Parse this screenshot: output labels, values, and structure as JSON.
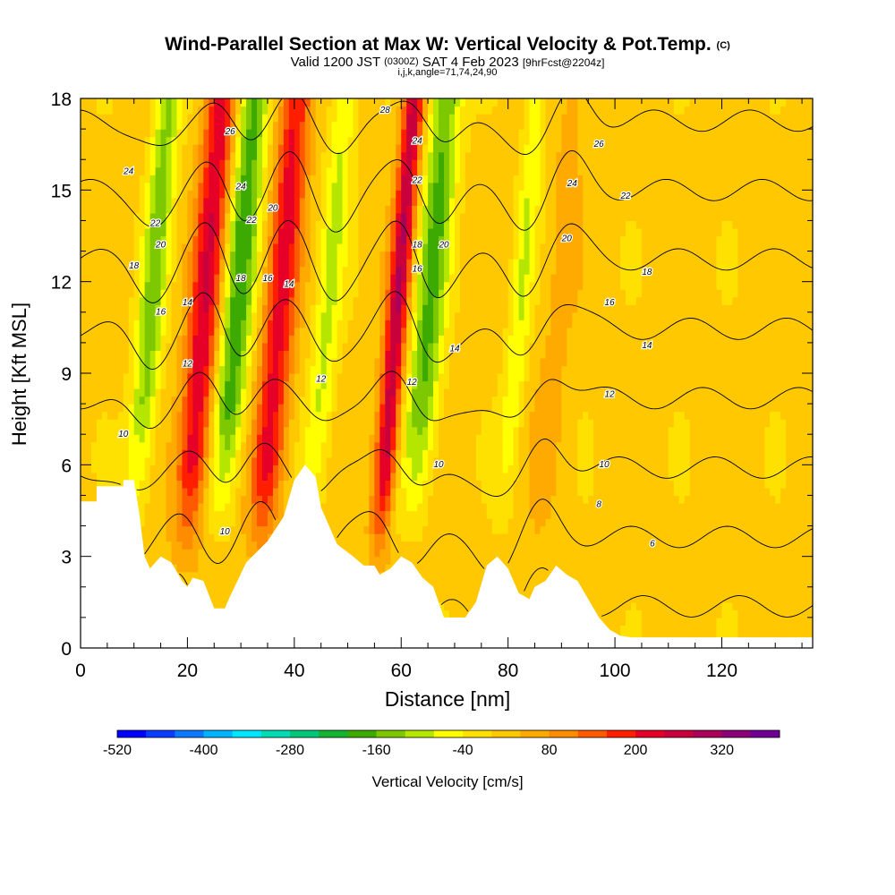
{
  "header": {
    "title": "Wind-Parallel Section at Max W: Vertical Velocity & Pot.Temp.",
    "title_mark": "(C)",
    "valid_prefix": "Valid 1200 JST",
    "valid_utc": "(0300Z)",
    "valid_date": "SAT 4 Feb 2023",
    "forecast": "[9hrFcst@2204z]",
    "indices": "i,j,k,angle=71,74,24,90"
  },
  "chart_data": {
    "type": "heatmap",
    "xlabel": "Distance [nm]",
    "ylabel": "Height [Kft MSL]",
    "xlim": [
      0,
      137
    ],
    "ylim": [
      0,
      18
    ],
    "x_ticks": [
      0,
      20,
      40,
      60,
      80,
      100,
      120
    ],
    "y_ticks": [
      0,
      3,
      6,
      9,
      12,
      15,
      18
    ],
    "colorbar": {
      "label": "Vertical Velocity [cm/s]",
      "tick_labels": [
        "-520",
        "-400",
        "-280",
        "-160",
        "-40",
        "80",
        "200",
        "320"
      ],
      "tick_values": [
        -520,
        -400,
        -280,
        -160,
        -40,
        80,
        200,
        320
      ],
      "range": [
        -520,
        400
      ],
      "colors": [
        "#0000ff",
        "#0a3cff",
        "#0a78ff",
        "#00b4ff",
        "#00e6ff",
        "#00dcb4",
        "#00c878",
        "#14b432",
        "#3caa00",
        "#7dc800",
        "#b4e600",
        "#ffff00",
        "#ffe100",
        "#ffc800",
        "#ffaa00",
        "#ff8c00",
        "#ff5a00",
        "#ff1e00",
        "#e60028",
        "#c8003c",
        "#aa005a",
        "#8c0078",
        "#6e0096"
      ]
    },
    "updrafts": [
      {
        "x": 21,
        "width": 3,
        "peak": 220
      },
      {
        "x": 35,
        "width": 3,
        "peak": 200
      },
      {
        "x": 57,
        "width": 2,
        "peak": 260
      },
      {
        "x": 87,
        "width": 3,
        "peak": 40
      }
    ],
    "downdrafts": [
      {
        "x": 11,
        "width": 2.5,
        "peak": -150
      },
      {
        "x": 27,
        "width": 3,
        "peak": -200
      },
      {
        "x": 44,
        "width": 2.5,
        "peak": -100
      },
      {
        "x": 63,
        "width": 3,
        "peak": -180
      },
      {
        "x": 80,
        "width": 2,
        "peak": -90
      }
    ],
    "terrain": [
      [
        0,
        4.8
      ],
      [
        3,
        4.8
      ],
      [
        3,
        5.3
      ],
      [
        8,
        5.3
      ],
      [
        8,
        5.5
      ],
      [
        10,
        5.5
      ],
      [
        11,
        4.4
      ],
      [
        12,
        3.0
      ],
      [
        13,
        2.6
      ],
      [
        15,
        3.0
      ],
      [
        17,
        2.8
      ],
      [
        19,
        2.2
      ],
      [
        20,
        2.0
      ],
      [
        21,
        2.3
      ],
      [
        23,
        2.2
      ],
      [
        25,
        1.3
      ],
      [
        27,
        1.3
      ],
      [
        28,
        1.7
      ],
      [
        31,
        2.8
      ],
      [
        35,
        3.5
      ],
      [
        38,
        4.3
      ],
      [
        40,
        5.5
      ],
      [
        42,
        6.0
      ],
      [
        44,
        5.6
      ],
      [
        45,
        4.6
      ],
      [
        46,
        4.2
      ],
      [
        48,
        3.4
      ],
      [
        51,
        3.0
      ],
      [
        53,
        2.7
      ],
      [
        55,
        2.7
      ],
      [
        56,
        2.4
      ],
      [
        58,
        2.6
      ],
      [
        60,
        3.0
      ],
      [
        62,
        2.8
      ],
      [
        64,
        2.3
      ],
      [
        66,
        2.0
      ],
      [
        68,
        1.0
      ],
      [
        72,
        1.0
      ],
      [
        74,
        1.5
      ],
      [
        76,
        2.7
      ],
      [
        78,
        3.0
      ],
      [
        80,
        2.6
      ],
      [
        82,
        1.8
      ],
      [
        84,
        1.6
      ],
      [
        85,
        2.0
      ],
      [
        87,
        2.2
      ],
      [
        89,
        2.7
      ],
      [
        91,
        2.4
      ],
      [
        93,
        2.2
      ],
      [
        95,
        1.6
      ],
      [
        97,
        1.0
      ],
      [
        99,
        0.6
      ],
      [
        101,
        0.4
      ],
      [
        103,
        0.35
      ],
      [
        137,
        0.35
      ]
    ],
    "contour_levels": [
      6,
      8,
      10,
      12,
      14,
      16,
      18,
      20,
      22,
      24,
      26,
      28
    ],
    "contour_labels": [
      {
        "text": "24",
        "x": 9,
        "y": 15.6
      },
      {
        "text": "22",
        "x": 14,
        "y": 13.9
      },
      {
        "text": "20",
        "x": 15,
        "y": 13.2
      },
      {
        "text": "18",
        "x": 10,
        "y": 12.5
      },
      {
        "text": "16",
        "x": 15,
        "y": 11.0
      },
      {
        "text": "14",
        "x": 20,
        "y": 11.3
      },
      {
        "text": "12",
        "x": 20,
        "y": 9.3
      },
      {
        "text": "10",
        "x": 8,
        "y": 7.0
      },
      {
        "text": "26",
        "x": 28,
        "y": 16.9
      },
      {
        "text": "24",
        "x": 30,
        "y": 15.1
      },
      {
        "text": "22",
        "x": 32,
        "y": 14.0
      },
      {
        "text": "20",
        "x": 36,
        "y": 14.4
      },
      {
        "text": "18",
        "x": 30,
        "y": 12.1
      },
      {
        "text": "16",
        "x": 35,
        "y": 12.1
      },
      {
        "text": "14",
        "x": 39,
        "y": 11.9
      },
      {
        "text": "12",
        "x": 45,
        "y": 8.8
      },
      {
        "text": "10",
        "x": 27,
        "y": 3.8
      },
      {
        "text": "28",
        "x": 57,
        "y": 17.6
      },
      {
        "text": "24",
        "x": 63,
        "y": 16.6
      },
      {
        "text": "22",
        "x": 63,
        "y": 15.3
      },
      {
        "text": "18",
        "x": 63,
        "y": 13.2
      },
      {
        "text": "20",
        "x": 68,
        "y": 13.2
      },
      {
        "text": "16",
        "x": 63,
        "y": 12.4
      },
      {
        "text": "14",
        "x": 70,
        "y": 9.8
      },
      {
        "text": "12",
        "x": 62,
        "y": 8.7
      },
      {
        "text": "10",
        "x": 67,
        "y": 6.0
      },
      {
        "text": "26",
        "x": 97,
        "y": 16.5
      },
      {
        "text": "24",
        "x": 92,
        "y": 15.2
      },
      {
        "text": "22",
        "x": 102,
        "y": 14.8
      },
      {
        "text": "20",
        "x": 91,
        "y": 13.4
      },
      {
        "text": "18",
        "x": 106,
        "y": 12.3
      },
      {
        "text": "16",
        "x": 99,
        "y": 11.3
      },
      {
        "text": "14",
        "x": 106,
        "y": 9.9
      },
      {
        "text": "12",
        "x": 99,
        "y": 8.3
      },
      {
        "text": "10",
        "x": 98,
        "y": 6.0
      },
      {
        "text": "8",
        "x": 97,
        "y": 4.7
      },
      {
        "text": "6",
        "x": 107,
        "y": 3.4
      }
    ]
  }
}
